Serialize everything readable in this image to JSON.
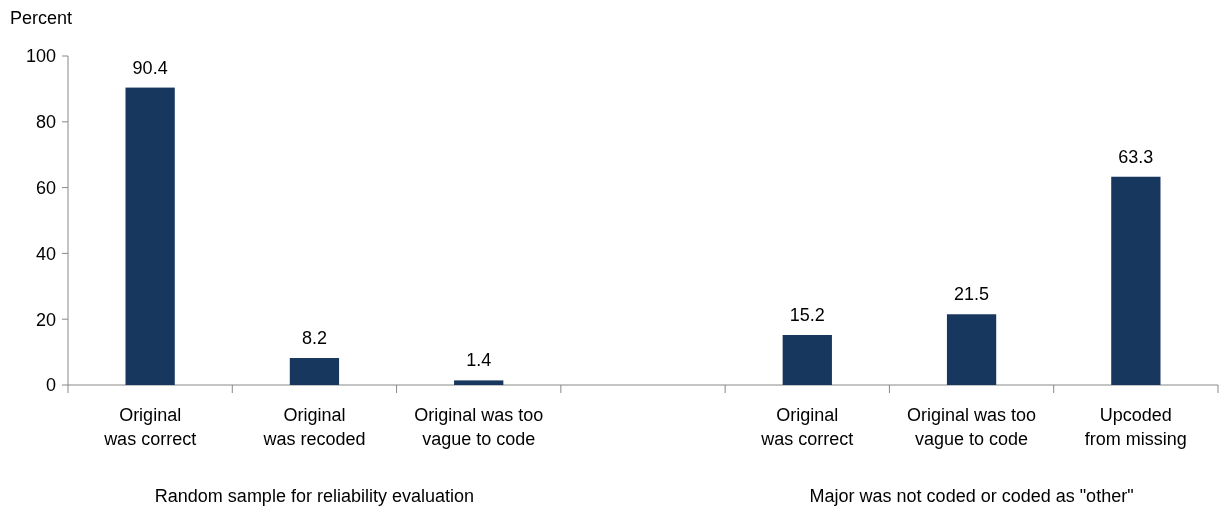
{
  "chart_data": {
    "type": "bar",
    "ylabel": "Percent",
    "categories": [
      "Original\nwas correct",
      "Original\nwas recoded",
      "Original was too\nvague to code",
      null,
      "Original\nwas correct",
      "Original was too\nvague to code",
      "Upcoded\nfrom missing"
    ],
    "values": [
      90.4,
      8.2,
      1.4,
      null,
      15.2,
      21.5,
      63.3
    ],
    "color": "#17375e",
    "ylim": [
      0,
      100
    ],
    "yticks": [
      0,
      20,
      40,
      60,
      80,
      100
    ],
    "grid": false,
    "data_labels": true,
    "annotations": [
      "Random sample for reliability evaluation",
      "Major was not coded or coded as \"other\""
    ]
  }
}
